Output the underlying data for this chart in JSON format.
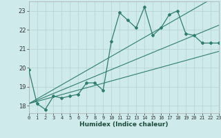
{
  "title": "",
  "xlabel": "Humidex (Indice chaleur)",
  "bg_color": "#ceeaea",
  "grid_color": "#b8d4d4",
  "line_color": "#2e7d6e",
  "x_data": [
    0,
    1,
    2,
    3,
    4,
    5,
    6,
    7,
    8,
    9,
    10,
    11,
    12,
    13,
    14,
    15,
    16,
    17,
    18,
    19,
    20,
    21,
    22,
    23
  ],
  "y_main": [
    19.9,
    18.1,
    17.8,
    18.5,
    18.4,
    18.5,
    18.6,
    19.2,
    19.2,
    18.8,
    21.4,
    22.9,
    22.5,
    22.1,
    23.2,
    21.7,
    22.1,
    22.8,
    23.0,
    21.8,
    21.7,
    21.3,
    21.3,
    21.3
  ],
  "y_reg1": [
    18.1,
    18.22,
    18.34,
    18.46,
    18.58,
    18.7,
    18.82,
    18.94,
    19.06,
    19.18,
    19.3,
    19.42,
    19.54,
    19.66,
    19.78,
    19.9,
    20.02,
    20.14,
    20.26,
    20.38,
    20.5,
    20.62,
    20.74,
    20.86
  ],
  "y_reg2": [
    18.1,
    18.28,
    18.46,
    18.64,
    18.82,
    19.0,
    19.18,
    19.36,
    19.54,
    19.72,
    19.9,
    20.08,
    20.26,
    20.44,
    20.62,
    20.8,
    20.98,
    21.16,
    21.34,
    21.52,
    21.7,
    21.88,
    22.06,
    22.24
  ],
  "y_reg3": [
    18.1,
    18.35,
    18.6,
    18.85,
    19.1,
    19.35,
    19.6,
    19.85,
    20.1,
    20.35,
    20.6,
    20.85,
    21.1,
    21.35,
    21.6,
    21.85,
    22.1,
    22.35,
    22.6,
    22.85,
    23.1,
    23.35,
    23.6,
    23.85
  ],
  "xlim": [
    0,
    23
  ],
  "ylim": [
    17.6,
    23.5
  ],
  "yticks": [
    18,
    19,
    20,
    21,
    22,
    23
  ],
  "xticks": [
    0,
    1,
    2,
    3,
    4,
    5,
    6,
    7,
    8,
    9,
    10,
    11,
    12,
    13,
    14,
    15,
    16,
    17,
    18,
    19,
    20,
    21,
    22,
    23
  ]
}
